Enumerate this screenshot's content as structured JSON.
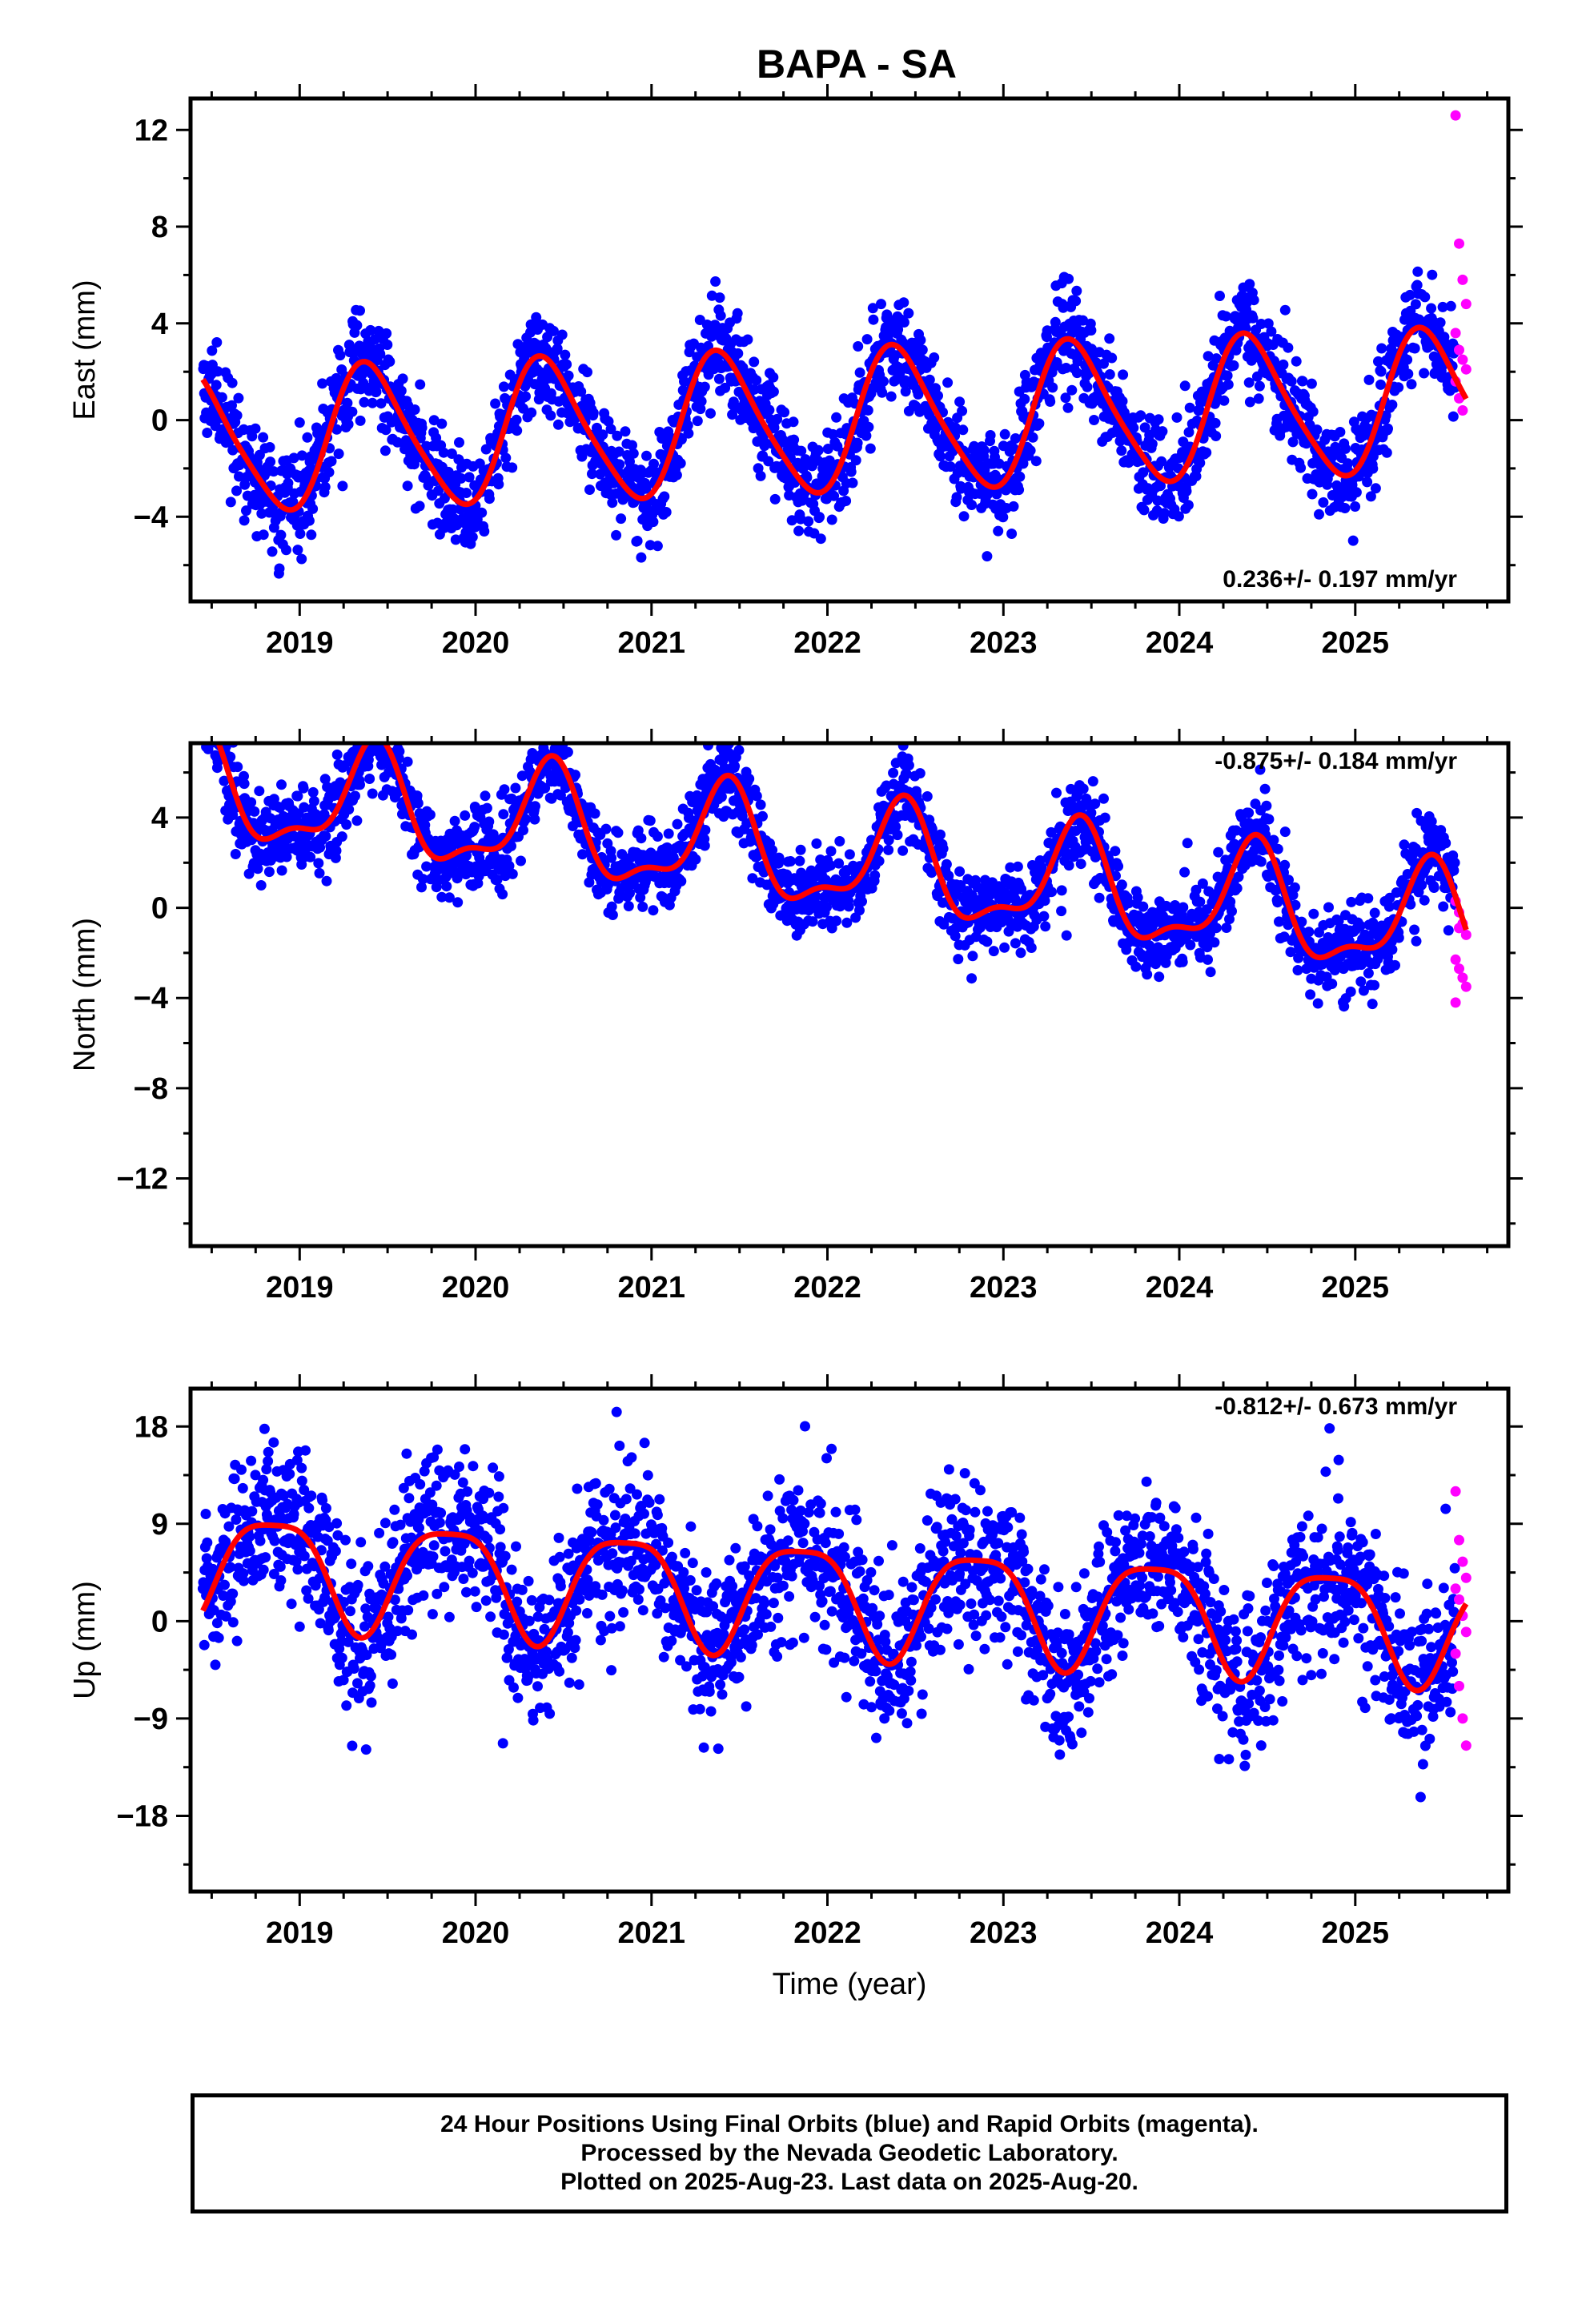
{
  "title": "BAPA - SA",
  "colors": {
    "final_orbits": "#0000ff",
    "rapid_orbits": "#ff00ff",
    "model_fit": "#ff0000",
    "axes": "#000000"
  },
  "footer": {
    "line1": "24 Hour Positions Using Final Orbits (blue) and Rapid Orbits (magenta).",
    "line2": "Processed by the Nevada Geodetic Laboratory.",
    "line3": "Plotted on 2025-Aug-23. Last data on 2025-Aug-20."
  },
  "chart_data": [
    {
      "type": "scatter",
      "component": "east",
      "title": "BAPA - SA",
      "xlabel": "",
      "ylabel": "East (mm)",
      "xlim": [
        2018.38,
        2025.87
      ],
      "ylim": [
        -7.5,
        13.3
      ],
      "xticks": [
        2019,
        2020,
        2021,
        2022,
        2023,
        2024,
        2025
      ],
      "yticks": [
        -4,
        0,
        4,
        8,
        12
      ],
      "trend_label": "0.236+/- 0.197 mm/yr",
      "trend_label_position": "bottom-right",
      "fit": {
        "intercept": -0.1,
        "rate": 0.236,
        "annual_amp": 2.9,
        "annual_phase": 0.4,
        "semiannual_amp": 0.45,
        "semiannual_phase": 0.3,
        "noise_sd": 1.05
      },
      "series": [
        {
          "name": "Final Orbits",
          "color": "#0000ff",
          "x_start": 2018.45,
          "x_end": 2025.57
        },
        {
          "name": "Rapid Orbits",
          "color": "#ff00ff",
          "x_start": 2025.57,
          "x_end": 2025.63,
          "values": [
            12.6,
            7.3,
            5.8,
            4.8,
            3.6,
            2.9,
            2.5,
            2.1,
            1.6,
            0.9,
            0.4
          ]
        },
        {
          "name": "Model fit",
          "color": "#ff0000"
        }
      ]
    },
    {
      "type": "scatter",
      "component": "north",
      "xlabel": "",
      "ylabel": "North (mm)",
      "xlim": [
        2018.38,
        2025.87
      ],
      "ylim": [
        -15.0,
        7.3
      ],
      "xticks": [
        2019,
        2020,
        2021,
        2022,
        2023,
        2024,
        2025
      ],
      "yticks": [
        -12,
        -8,
        -4,
        0,
        4
      ],
      "trend_label": "-0.875+/- 0.184 mm/yr",
      "trend_label_position": "top-right",
      "fit": {
        "intercept": 2.2,
        "rate": -0.875,
        "annual_amp": 2.3,
        "annual_phase": 0.42,
        "semiannual_amp": 0.9,
        "semiannual_phase": 0.45,
        "noise_sd": 0.9
      },
      "series": [
        {
          "name": "Final Orbits",
          "color": "#0000ff",
          "x_start": 2018.45,
          "x_end": 2025.57
        },
        {
          "name": "Rapid Orbits",
          "color": "#ff00ff",
          "x_start": 2025.57,
          "x_end": 2025.63,
          "values": [
            0.3,
            -0.2,
            -0.7,
            -1.2,
            -2.3,
            -2.7,
            -3.1,
            -3.5,
            -4.2,
            -0.9
          ]
        },
        {
          "name": "Model fit",
          "color": "#ff0000"
        }
      ]
    },
    {
      "type": "scatter",
      "component": "up",
      "xlabel": "Time (year)",
      "ylabel": "Up (mm)",
      "xlim": [
        2018.38,
        2025.87
      ],
      "ylim": [
        -25.0,
        21.5
      ],
      "xticks": [
        2019,
        2020,
        2021,
        2022,
        2023,
        2024,
        2025
      ],
      "yticks": [
        -18,
        -9,
        0,
        9,
        18
      ],
      "trend_label": "-0.812+/- 0.673 mm/yr",
      "trend_label_position": "top-right",
      "fit": {
        "intercept": 2.5,
        "rate": -0.812,
        "annual_amp": 5.0,
        "annual_phase": 0.85,
        "semiannual_amp": 1.2,
        "semiannual_phase": 0.6,
        "noise_sd": 3.6
      },
      "series": [
        {
          "name": "Final Orbits",
          "color": "#0000ff",
          "x_start": 2018.45,
          "x_end": 2025.57
        },
        {
          "name": "Rapid Orbits",
          "color": "#ff00ff",
          "x_start": 2025.57,
          "x_end": 2025.63,
          "values": [
            12.0,
            7.5,
            5.5,
            4.0,
            3.0,
            2.0,
            0.5,
            -1.0,
            -3.0,
            -6.0,
            -9.0,
            -11.5
          ]
        },
        {
          "name": "Model fit",
          "color": "#ff0000"
        }
      ]
    }
  ]
}
